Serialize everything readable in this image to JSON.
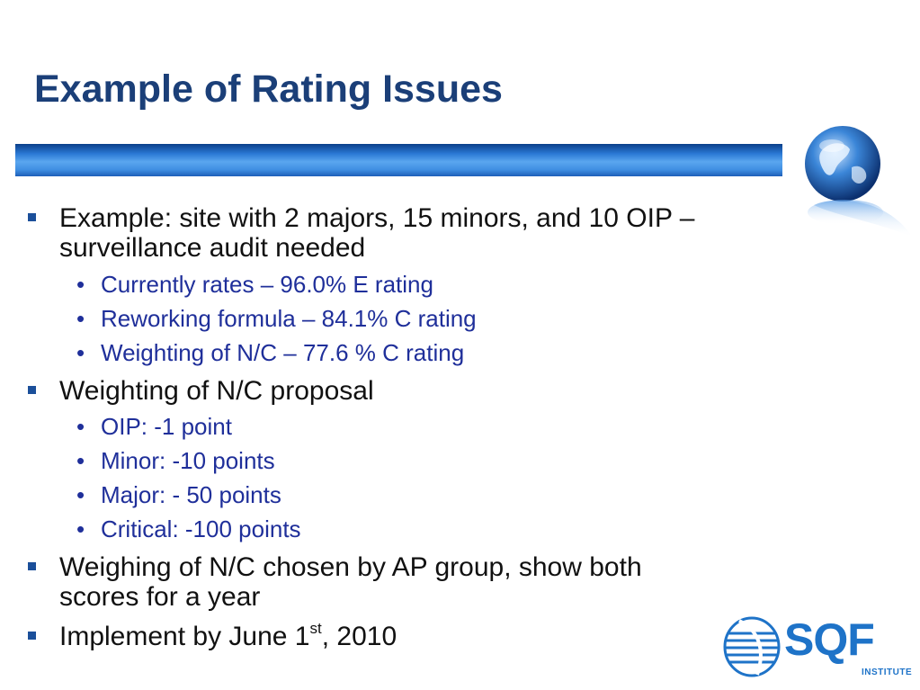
{
  "slide": {
    "title": "Example of Rating Issues",
    "bullets": [
      {
        "text_line1": "Example:  site with 2 majors, 15 minors, and 10 OIP –",
        "text_line2": "surveillance audit needed",
        "sub": [
          "Currently rates – 96.0% E rating",
          "Reworking formula – 84.1% C rating",
          "Weighting of N/C – 77.6 % C rating"
        ]
      },
      {
        "text": "Weighting of N/C proposal",
        "sub": [
          "OIP: -1 point",
          "Minor: -10 points",
          "Major: - 50 points",
          "Critical: -100 points"
        ]
      },
      {
        "text_line1": "Weighing of N/C chosen by AP group, show both",
        "text_line2": "scores for a year"
      },
      {
        "text_before": "Implement by June 1",
        "text_sup": "st",
        "text_after": ", 2010"
      }
    ],
    "sub_bullet_glyph": "•"
  },
  "logo": {
    "word": "SQF",
    "sub": "INSTITUTE"
  },
  "colors": {
    "title": "#1b3f78",
    "sub_bullet_text": "#1f2f9a",
    "bar_accent": "#2a78d4",
    "logo": "#1e73c8"
  },
  "icons": {
    "globe": "globe-icon",
    "logo_mark": "sqf-logo-icon"
  }
}
